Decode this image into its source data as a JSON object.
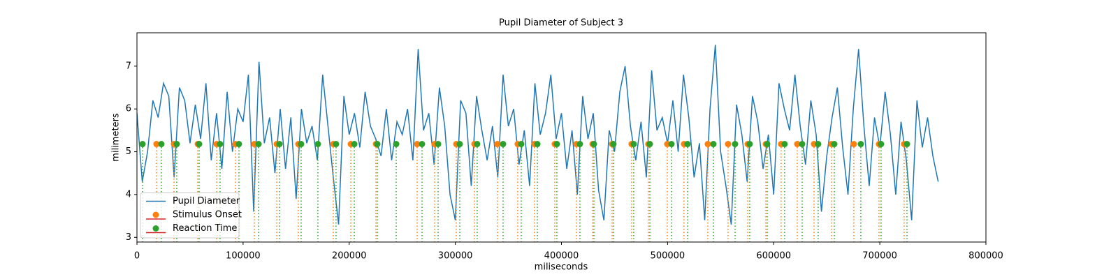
{
  "chart_data": {
    "type": "line",
    "title": "Pupil Diameter of Subject 3",
    "x_label": "miliseconds",
    "y_label": "milimeters",
    "xlim": [
      0,
      800000
    ],
    "ylim": [
      2.89,
      7.78
    ],
    "xticks": [
      0,
      100000,
      200000,
      300000,
      400000,
      500000,
      600000,
      700000,
      800000
    ],
    "yticks": [
      3,
      4,
      5,
      6,
      7
    ],
    "legend": "lower left",
    "x": [
      0,
      5000,
      10000,
      15000,
      20000,
      25000,
      30000,
      35000,
      40000,
      45000,
      50000,
      55000,
      60000,
      65000,
      70000,
      75000,
      80000,
      85000,
      90000,
      95000,
      100000,
      105000,
      110000,
      115000,
      120000,
      125000,
      130000,
      135000,
      140000,
      145000,
      150000,
      155000,
      160000,
      165000,
      170000,
      175000,
      180000,
      185000,
      190000,
      195000,
      200000,
      205000,
      210000,
      215000,
      220000,
      225000,
      230000,
      235000,
      240000,
      245000,
      250000,
      255000,
      260000,
      265000,
      270000,
      275000,
      280000,
      285000,
      290000,
      295000,
      300000,
      305000,
      310000,
      315000,
      320000,
      325000,
      330000,
      335000,
      340000,
      345000,
      350000,
      355000,
      360000,
      365000,
      370000,
      375000,
      380000,
      385000,
      390000,
      395000,
      400000,
      405000,
      410000,
      415000,
      420000,
      425000,
      430000,
      435000,
      440000,
      445000,
      450000,
      455000,
      460000,
      465000,
      470000,
      475000,
      480000,
      485000,
      490000,
      495000,
      500000,
      505000,
      510000,
      515000,
      520000,
      525000,
      530000,
      535000,
      540000,
      545000,
      550000,
      555000,
      560000,
      565000,
      570000,
      575000,
      580000,
      585000,
      590000,
      595000,
      600000,
      605000,
      610000,
      615000,
      620000,
      625000,
      630000,
      635000,
      640000,
      645000,
      650000,
      655000,
      660000,
      665000,
      670000,
      675000,
      680000,
      685000,
      690000,
      695000,
      700000,
      705000,
      710000,
      715000,
      720000,
      725000,
      730000,
      735000,
      740000,
      745000,
      750000,
      755000
    ],
    "series": [
      {
        "name": "Pupil Diameter",
        "color": "#1f77b4",
        "values": [
          5.9,
          4.3,
          5.0,
          6.2,
          5.8,
          6.6,
          6.3,
          4.4,
          6.5,
          6.2,
          5.2,
          6.1,
          5.3,
          6.6,
          4.8,
          5.9,
          4.6,
          6.4,
          5.0,
          6.0,
          5.7,
          6.8,
          3.6,
          7.1,
          5.2,
          5.8,
          4.5,
          6.0,
          4.6,
          5.8,
          3.9,
          6.0,
          5.2,
          5.6,
          4.8,
          6.8,
          5.6,
          4.4,
          3.3,
          6.3,
          5.4,
          5.9,
          5.1,
          6.4,
          5.6,
          5.3,
          4.9,
          6.0,
          4.8,
          5.7,
          5.4,
          6.0,
          4.8,
          7.4,
          5.5,
          5.9,
          4.7,
          6.5,
          5.6,
          4.0,
          3.4,
          6.2,
          5.9,
          4.2,
          6.3,
          5.5,
          4.8,
          5.6,
          4.4,
          6.8,
          5.6,
          6.0,
          4.7,
          5.5,
          4.2,
          6.6,
          5.4,
          5.9,
          6.8,
          5.3,
          5.9,
          4.6,
          5.5,
          4.0,
          6.3,
          5.3,
          5.9,
          4.1,
          3.4,
          5.5,
          5.0,
          6.4,
          7.0,
          5.6,
          4.8,
          5.7,
          4.4,
          6.9,
          5.5,
          5.8,
          5.2,
          6.2,
          5.0,
          6.8,
          5.8,
          4.4,
          5.2,
          3.4,
          6.0,
          7.5,
          5.0,
          4.2,
          3.3,
          6.1,
          5.4,
          4.3,
          6.3,
          5.7,
          4.6,
          5.4,
          4.0,
          6.6,
          6.0,
          5.5,
          6.8,
          5.6,
          4.7,
          6.2,
          5.4,
          3.6,
          4.9,
          5.8,
          6.5,
          5.1,
          4.0,
          6.0,
          7.4,
          5.6,
          4.2,
          5.8,
          5.1,
          6.4,
          5.4,
          4.0,
          5.7,
          4.8,
          3.4,
          6.2,
          5.1,
          5.8,
          4.9,
          4.3
        ]
      },
      {
        "name": "Stimulus Onset",
        "type": "stem",
        "color": "#ff7f0e",
        "baseline_color": "#d62728",
        "x": [
          18400,
          34900,
          57300,
          75100,
          92800,
          110600,
          131700,
          152100,
          185000,
          201500,
          225200,
          264000,
          280500,
          300900,
          318000,
          339700,
          358800,
          374600,
          393700,
          414100,
          429300,
          447700,
          466100,
          481900,
          499700,
          515500,
          537900,
          557000,
          575500,
          592600,
          607000,
          622200,
          638000,
          654400,
          675500,
          699200,
          722900
        ],
        "values": [
          5.18,
          5.18,
          5.18,
          5.18,
          5.18,
          5.18,
          5.18,
          5.18,
          5.18,
          5.18,
          5.18,
          5.18,
          5.18,
          5.18,
          5.18,
          5.18,
          5.18,
          5.18,
          5.18,
          5.18,
          5.18,
          5.18,
          5.18,
          5.18,
          5.18,
          5.18,
          5.18,
          5.18,
          5.18,
          5.18,
          5.18,
          5.18,
          5.18,
          5.18,
          5.18,
          5.18,
          5.18
        ]
      },
      {
        "name": "Reaction Time",
        "type": "stem",
        "color": "#2ca02c",
        "baseline_color": "#d62728",
        "x": [
          5300,
          23000,
          37500,
          58600,
          78300,
          96100,
          114600,
          134300,
          154700,
          170500,
          187600,
          204800,
          226500,
          244300,
          268600,
          283800,
          304200,
          320600,
          345000,
          362100,
          377300,
          395700,
          417400,
          430600,
          449000,
          468100,
          483300,
          503700,
          518800,
          543200,
          563600,
          577400,
          593900,
          610300,
          626800,
          641900,
          657100,
          682100,
          701200,
          725600
        ],
        "values": [
          5.18,
          5.18,
          5.18,
          5.18,
          5.18,
          5.18,
          5.18,
          5.18,
          5.18,
          5.18,
          5.18,
          5.18,
          5.18,
          5.18,
          5.18,
          5.18,
          5.18,
          5.18,
          5.18,
          5.18,
          5.18,
          5.18,
          5.18,
          5.18,
          5.18,
          5.18,
          5.18,
          5.18,
          5.18,
          5.18,
          5.18,
          5.18,
          5.18,
          5.18,
          5.18,
          5.18,
          5.18,
          5.18,
          5.18,
          5.18
        ]
      }
    ]
  }
}
